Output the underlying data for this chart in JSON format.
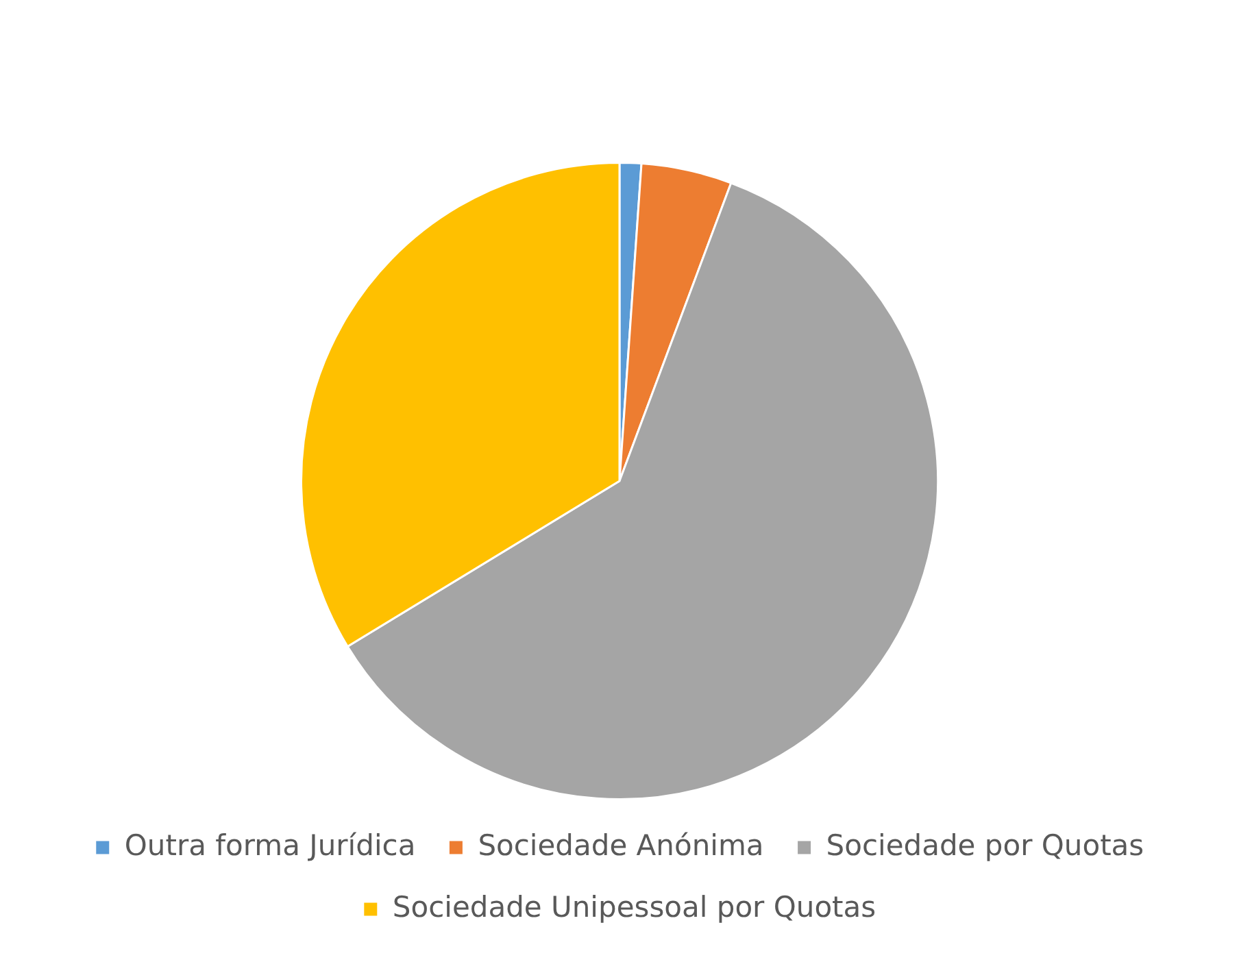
{
  "chart_data": {
    "type": "pie",
    "categories": [
      "Outra forma Jurídica",
      "Sociedade Anónima",
      "Sociedade por Quotas",
      "Sociedade Unipessoal por Quotas"
    ],
    "values": [
      1.1,
      4.6,
      60.6,
      33.7
    ],
    "colors": [
      "#5b9bd5",
      "#ed7d31",
      "#a5a5a5",
      "#ffc000"
    ],
    "legend": "bottom"
  }
}
